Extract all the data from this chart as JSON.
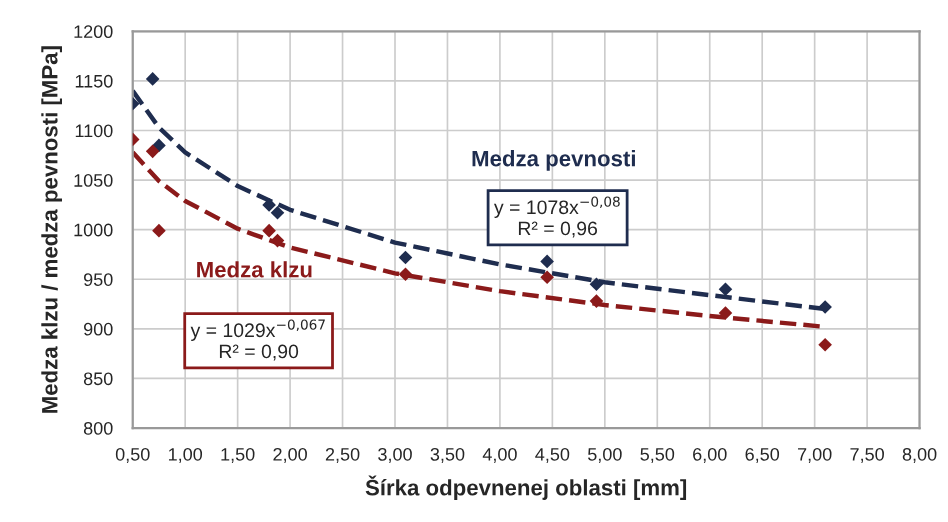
{
  "chart_data": {
    "type": "scatter",
    "xlabel": "Šírka odpevnenej oblasti [mm]",
    "ylabel": "Medza klzu / medza pevnosti [MPa]",
    "xlim": [
      0.5,
      8
    ],
    "xticks": [
      {
        "value": 0.5,
        "label": "0,50"
      },
      {
        "value": 1,
        "label": "1,00"
      },
      {
        "value": 1.5,
        "label": "1,50"
      },
      {
        "value": 2,
        "label": "2,00"
      },
      {
        "value": 2.5,
        "label": "2,50"
      },
      {
        "value": 3,
        "label": "3,00"
      },
      {
        "value": 3.5,
        "label": "3,50"
      },
      {
        "value": 4,
        "label": "4,00"
      },
      {
        "value": 4.5,
        "label": "4,50"
      },
      {
        "value": 5,
        "label": "5,00"
      },
      {
        "value": 5.5,
        "label": "5,50"
      },
      {
        "value": 6,
        "label": "6,00"
      },
      {
        "value": 6.5,
        "label": "6,50"
      },
      {
        "value": 7,
        "label": "7,00"
      },
      {
        "value": 7.5,
        "label": "7,50"
      },
      {
        "value": 8,
        "label": "8,00"
      }
    ],
    "ylim": [
      800,
      1200
    ],
    "yticks": [
      800,
      850,
      900,
      950,
      1000,
      1050,
      1100,
      1150,
      1200
    ],
    "grid": true,
    "series": [
      {
        "name": "Medza pevnosti",
        "marker": "diamond",
        "color": "#1f2d4f",
        "x": [
          0.5,
          0.69,
          0.75,
          1.8,
          1.88,
          3.1,
          4.45,
          4.92,
          6.15,
          7.1
        ],
        "values": [
          1127,
          1152,
          1085,
          1025,
          1017,
          972,
          968,
          945,
          940,
          922
        ]
      },
      {
        "name": "Medza klzu",
        "marker": "diamond",
        "color": "#8b1a1a",
        "x": [
          0.5,
          0.69,
          0.75,
          1.8,
          1.88,
          3.1,
          4.45,
          4.92,
          6.15,
          7.1
        ],
        "values": [
          1091,
          1079,
          999,
          999,
          989,
          955,
          952,
          928,
          916,
          884
        ]
      },
      {
        "type": "line",
        "line_style": "dashed",
        "color": "#1f2d4f",
        "x": [
          0.5,
          0.75,
          1,
          1.5,
          2,
          3,
          4,
          5,
          6,
          7.1
        ],
        "values": [
          1140,
          1103,
          1078,
          1044,
          1020,
          987,
          965,
          947,
          934,
          920
        ]
      },
      {
        "type": "line",
        "line_style": "dashed",
        "color": "#8b1a1a",
        "x": [
          0.5,
          0.75,
          1,
          1.5,
          2,
          3,
          4,
          5,
          6,
          7.1
        ],
        "values": [
          1078,
          1049,
          1029,
          1001,
          982,
          956,
          938,
          924,
          913,
          902
        ]
      }
    ],
    "annotations": [
      "y = 1078x$^{−0,08}$\nR² = 0,96",
      "y = 1029x$^{−0,067}$\nR² = 0,90"
    ]
  }
}
